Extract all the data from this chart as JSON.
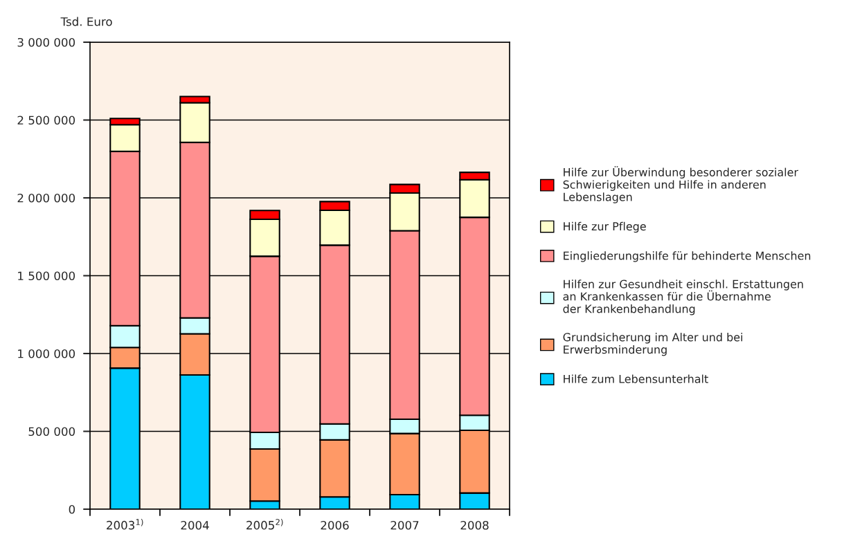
{
  "chart_data": {
    "type": "bar",
    "stacked": true,
    "ylabel": "Tsd. Euro",
    "categories": [
      "2003$^{1)}$",
      "2004",
      "2005$^{2)}$",
      "2006",
      "2007",
      "2008"
    ],
    "series": [
      {
        "name": "Hilfe zum Lebensunterhalt",
        "color": "#00ccff",
        "values": [
          906000,
          862000,
          52000,
          79000,
          93000,
          104000
        ]
      },
      {
        "name": "Grundsicherung im Alter und bei\nErwerbsminderung",
        "color": "#ff9966",
        "values": [
          133000,
          265000,
          335000,
          366000,
          393000,
          403000
        ]
      },
      {
        "name": "Hilfen zur Gesundheit einschl. Erstattungen\nan Krankenkassen für die Übernahme\nder Krankenbehandlung",
        "color": "#ccffff",
        "values": [
          140000,
          102000,
          106000,
          103000,
          92000,
          96000
        ]
      },
      {
        "name": "Eingliederungshilfe für behinderte Menschen",
        "color": "#ff8f8f",
        "values": [
          1120000,
          1127000,
          1132000,
          1148000,
          1211000,
          1272000
        ]
      },
      {
        "name": "Hilfe zur Pflege",
        "color": "#ffffcc",
        "values": [
          171000,
          255000,
          237000,
          224000,
          242000,
          242000
        ]
      },
      {
        "name": "Hilfe zur Überwindung besonderer sozialer\nSchwierigkeiten und Hilfe in anderen\nLebenslagen",
        "color": "#ff0000",
        "values": [
          40000,
          40000,
          57000,
          56000,
          55000,
          47000
        ]
      }
    ],
    "ylim": [
      0,
      3000000
    ],
    "yticks": [
      {
        "value": 0,
        "label": "0"
      },
      {
        "value": 500000,
        "label": "500 000"
      },
      {
        "value": 1000000,
        "label": "1 000 000"
      },
      {
        "value": 1500000,
        "label": "1 500 000"
      },
      {
        "value": 2000000,
        "label": "2 000 000"
      },
      {
        "value": 2500000,
        "label": "2 500 000"
      },
      {
        "value": 3000000,
        "label": "3 000 000"
      }
    ],
    "grid": "y",
    "legend": "right"
  }
}
